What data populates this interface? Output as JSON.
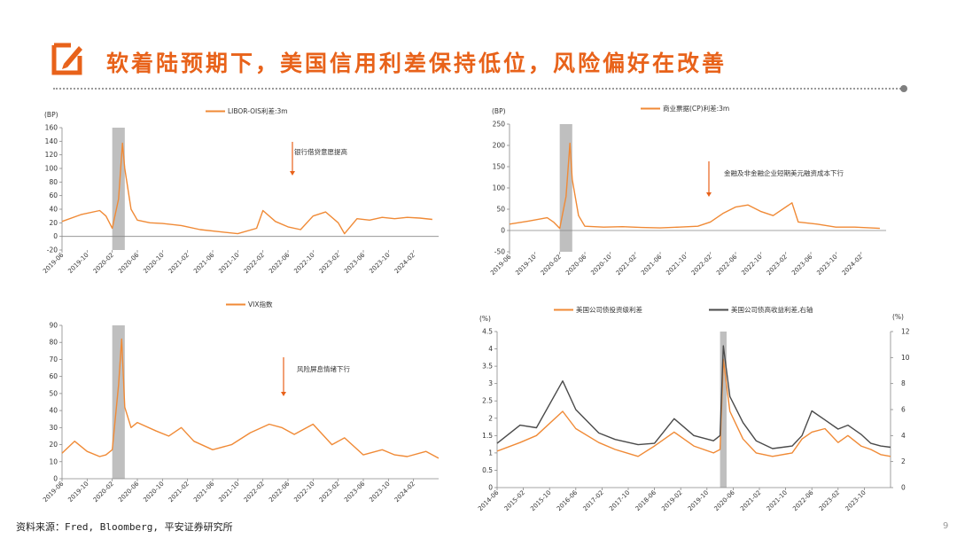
{
  "header": {
    "title": "软着陆预期下，美国信用利差保持低位，风险偏好在改善",
    "logo_icon": "pencil-box-icon"
  },
  "footer": {
    "source": "资料来源：Fred, Bloomberg, 平安证券研究所",
    "page": "9"
  },
  "colors": {
    "accent": "#e8621a",
    "orange_series": "#f08a36",
    "gray_series": "#4a4a4a",
    "shade": "#bfbfbf"
  },
  "chart_data": [
    {
      "type": "line",
      "unit_label": "(BP)",
      "legend": "LIBOR-OIS利差:3m",
      "annotation": "银行借贷意愿提高",
      "ylim": [
        -20,
        160
      ],
      "yticks": [
        -20,
        0,
        20,
        40,
        60,
        80,
        100,
        120,
        140,
        160
      ],
      "xrange": [
        "2019-06",
        "2024-06"
      ],
      "xticks": [
        "2019-06",
        "2019-10",
        "2020-02",
        "2020-06",
        "2020-10",
        "2021-02",
        "2021-06",
        "2021-10",
        "2022-02",
        "2022-06",
        "2022-10",
        "2023-02",
        "2023-06",
        "2023-10",
        "2024-02"
      ],
      "shade": [
        "2020-02",
        "2020-04"
      ],
      "series": [
        {
          "name": "LIBOR-OIS利差:3m",
          "x": [
            "2019-06",
            "2019-09",
            "2019-12",
            "2020-01",
            "2020-02",
            "2020-03",
            "2020-03-20",
            "2020-04",
            "2020-05",
            "2020-06",
            "2020-08",
            "2020-10",
            "2021-01",
            "2021-04",
            "2021-07",
            "2021-10",
            "2022-01",
            "2022-02",
            "2022-04",
            "2022-06",
            "2022-08",
            "2022-10",
            "2022-12",
            "2023-02",
            "2023-03",
            "2023-05",
            "2023-07",
            "2023-09",
            "2023-11",
            "2024-01",
            "2024-03",
            "2024-05"
          ],
          "values": [
            22,
            32,
            38,
            30,
            12,
            55,
            137,
            100,
            40,
            24,
            20,
            19,
            16,
            10,
            7,
            4,
            12,
            38,
            22,
            14,
            10,
            30,
            36,
            20,
            4,
            26,
            24,
            28,
            26,
            28,
            27,
            25
          ]
        }
      ],
      "grid": false
    },
    {
      "type": "line",
      "unit_label": "(BP)",
      "legend": "商业票据(CP)利差:3m",
      "annotation": "金融及非金融企业短期美元融资成本下行",
      "ylim": [
        -50,
        250
      ],
      "yticks": [
        -50,
        0,
        50,
        100,
        150,
        200,
        250
      ],
      "xrange": [
        "2019-06",
        "2024-06"
      ],
      "xticks": [
        "2019-06",
        "2019-10",
        "2020-02",
        "2020-06",
        "2020-10",
        "2021-02",
        "2021-06",
        "2021-10",
        "2022-02",
        "2022-06",
        "2022-10",
        "2023-02",
        "2023-06",
        "2023-10",
        "2024-02"
      ],
      "shade": [
        "2020-02",
        "2020-04"
      ],
      "series": [
        {
          "name": "商业票据(CP)利差:3m",
          "x": [
            "2019-06",
            "2019-09",
            "2019-12",
            "2020-01",
            "2020-02",
            "2020-03",
            "2020-03-20",
            "2020-04",
            "2020-05",
            "2020-06",
            "2020-09",
            "2020-12",
            "2021-03",
            "2021-06",
            "2021-09",
            "2021-12",
            "2022-02",
            "2022-04",
            "2022-06",
            "2022-08",
            "2022-10",
            "2022-12",
            "2023-03",
            "2023-04",
            "2023-07",
            "2023-10",
            "2024-01",
            "2024-05"
          ],
          "values": [
            15,
            22,
            30,
            20,
            5,
            80,
            205,
            120,
            35,
            10,
            8,
            9,
            7,
            6,
            8,
            10,
            20,
            40,
            55,
            60,
            45,
            35,
            65,
            20,
            15,
            8,
            8,
            5
          ]
        }
      ],
      "grid": false
    },
    {
      "type": "line",
      "unit_label": "",
      "legend": "VIX指数",
      "annotation": "风险屏息情绪下行",
      "ylim": [
        0,
        90
      ],
      "yticks": [
        0,
        10,
        20,
        30,
        40,
        50,
        60,
        70,
        80,
        90
      ],
      "xrange": [
        "2019-06",
        "2024-06"
      ],
      "xticks": [
        "2019-06",
        "2019-10",
        "2020-02",
        "2020-06",
        "2020-10",
        "2021-02",
        "2021-06",
        "2021-10",
        "2022-02",
        "2022-06",
        "2022-10",
        "2023-02",
        "2023-06",
        "2023-10",
        "2024-02"
      ],
      "shade": [
        "2020-02",
        "2020-04"
      ],
      "series": [
        {
          "name": "VIX指数",
          "x": [
            "2019-06",
            "2019-08",
            "2019-10",
            "2019-12",
            "2020-01",
            "2020-02",
            "2020-03",
            "2020-03-16",
            "2020-04",
            "2020-05",
            "2020-06",
            "2020-09",
            "2020-11",
            "2021-01",
            "2021-03",
            "2021-06",
            "2021-09",
            "2021-12",
            "2022-03",
            "2022-05",
            "2022-07",
            "2022-10",
            "2023-01",
            "2023-03",
            "2023-06",
            "2023-09",
            "2023-11",
            "2024-01",
            "2024-04",
            "2024-06"
          ],
          "values": [
            15,
            22,
            16,
            13,
            14,
            17,
            55,
            82,
            42,
            30,
            33,
            28,
            25,
            30,
            22,
            17,
            20,
            27,
            32,
            30,
            26,
            32,
            20,
            24,
            14,
            17,
            14,
            13,
            16,
            12
          ]
        }
      ],
      "grid": false
    },
    {
      "type": "line",
      "unit_label": "(%)",
      "right_unit_label": "(%)",
      "legend": [
        "美国公司债投资级利差",
        "美国公司债高收益利差,右轴"
      ],
      "ylim": [
        0,
        4.5
      ],
      "yticks": [
        0,
        0.5,
        1,
        1.5,
        2,
        2.5,
        3,
        3.5,
        4,
        4.5
      ],
      "y2lim": [
        0,
        12
      ],
      "y2ticks": [
        0,
        2,
        4,
        6,
        8,
        10,
        12
      ],
      "xrange": [
        "2014-06",
        "2024-06"
      ],
      "xticks": [
        "2014-06",
        "2015-02",
        "2015-10",
        "2016-06",
        "2017-02",
        "2017-10",
        "2018-06",
        "2019-02",
        "2019-10",
        "2020-06",
        "2021-02",
        "2021-10",
        "2022-06",
        "2023-02",
        "2023-10"
      ],
      "shade": [
        "2020-02",
        "2020-04"
      ],
      "series": [
        {
          "name": "美国公司债投资级利差",
          "axis": "left",
          "x": [
            "2014-06",
            "2015-01",
            "2015-06",
            "2016-02",
            "2016-06",
            "2017-01",
            "2017-06",
            "2018-01",
            "2018-06",
            "2018-12",
            "2019-06",
            "2019-12",
            "2020-02",
            "2020-03",
            "2020-05",
            "2020-09",
            "2021-01",
            "2021-06",
            "2021-12",
            "2022-03",
            "2022-06",
            "2022-10",
            "2023-02",
            "2023-05",
            "2023-09",
            "2023-12",
            "2024-03",
            "2024-06"
          ],
          "values": [
            1.05,
            1.3,
            1.5,
            2.2,
            1.7,
            1.3,
            1.1,
            0.9,
            1.2,
            1.6,
            1.2,
            1.0,
            1.1,
            3.7,
            2.2,
            1.4,
            1.0,
            0.9,
            1.0,
            1.4,
            1.6,
            1.7,
            1.3,
            1.5,
            1.2,
            1.1,
            0.95,
            0.9
          ]
        },
        {
          "name": "美国公司债高收益利差,右轴",
          "axis": "right",
          "x": [
            "2014-06",
            "2015-01",
            "2015-06",
            "2016-02",
            "2016-06",
            "2017-01",
            "2017-06",
            "2018-01",
            "2018-06",
            "2018-12",
            "2019-06",
            "2019-12",
            "2020-02",
            "2020-03",
            "2020-05",
            "2020-09",
            "2021-01",
            "2021-06",
            "2021-12",
            "2022-03",
            "2022-06",
            "2022-10",
            "2023-02",
            "2023-05",
            "2023-09",
            "2023-12",
            "2024-03",
            "2024-06"
          ],
          "values": [
            3.4,
            4.8,
            4.6,
            8.2,
            6.0,
            4.2,
            3.7,
            3.3,
            3.4,
            5.3,
            4.0,
            3.6,
            4.0,
            10.9,
            7.0,
            5.0,
            3.6,
            3.0,
            3.2,
            4.0,
            5.9,
            5.2,
            4.5,
            4.8,
            4.1,
            3.4,
            3.2,
            3.1
          ]
        }
      ],
      "grid": false
    }
  ]
}
